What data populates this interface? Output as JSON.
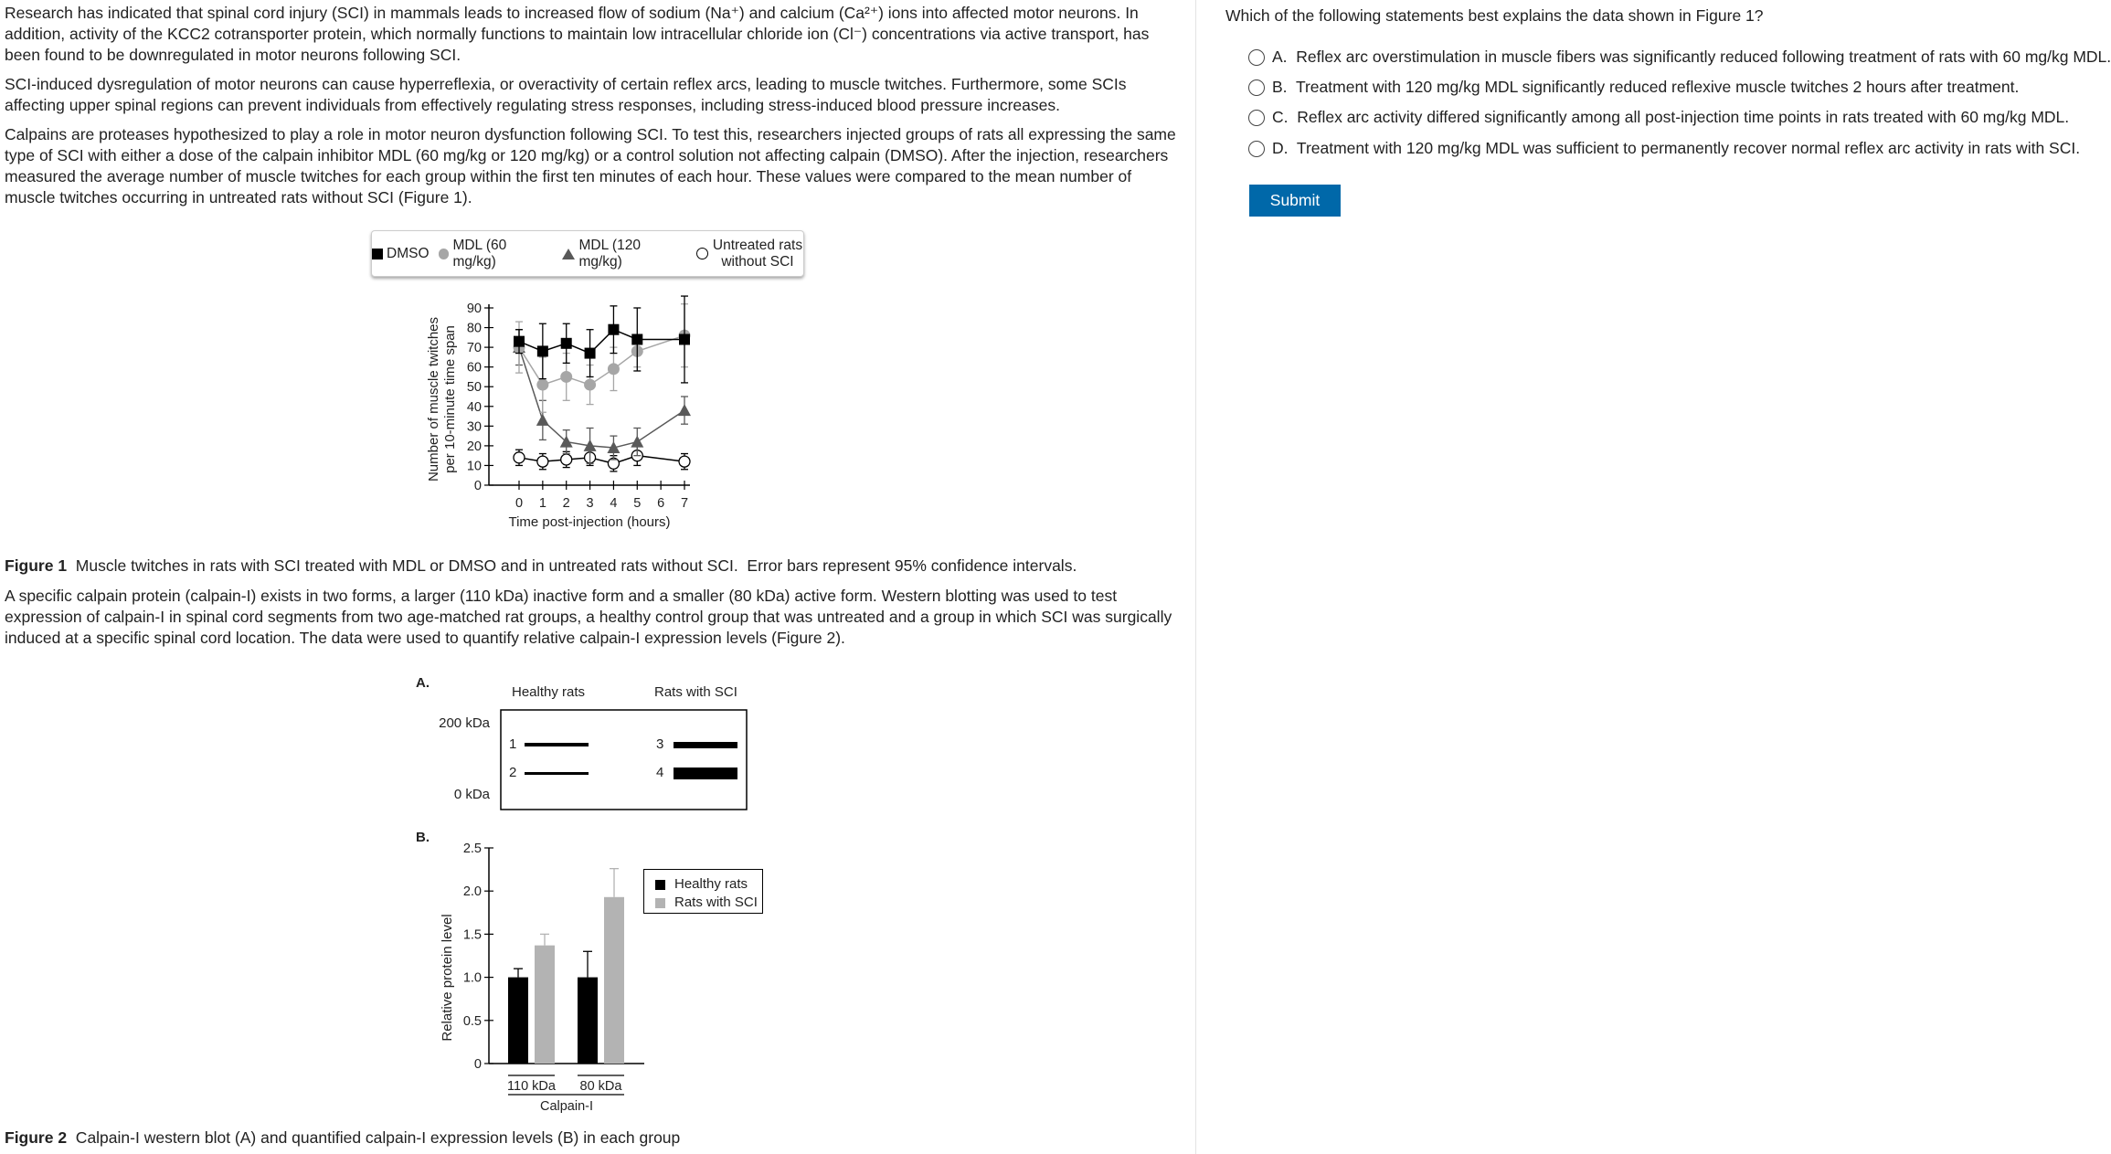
{
  "passage": {
    "p1": "Research has indicated that spinal cord injury (SCI) in mammals leads to increased flow of sodium (Na⁺) and calcium (Ca²⁺) ions into affected motor neurons.  In addition, activity of the KCC2 cotransporter protein, which normally functions to maintain low intracellular chloride ion (Cl⁻) concentrations via active transport, has been found to be downregulated in motor neurons following SCI.",
    "p2": "SCI-induced dysregulation of motor neurons can cause hyperreflexia, or overactivity of certain reflex arcs, leading to muscle twitches.  Furthermore, some SCIs affecting upper spinal regions can prevent individuals from effectively regulating stress responses, including stress-induced blood pressure increases.",
    "p3": "Calpains are proteases hypothesized to play a role in motor neuron dysfunction following SCI.  To test this, researchers injected groups of rats all expressing the same type of SCI with either a dose of the calpain inhibitor MDL (60 mg/kg or 120 mg/kg) or a control solution not affecting calpain (DMSO).  After the injection, researchers measured the average number of muscle twitches for each group within the first ten minutes of each hour.  These values were compared to the mean number of muscle twitches occurring in untreated rats without SCI (Figure 1).",
    "p4": "A specific calpain protein (calpain-I) exists in two forms, a larger (110 kDa) inactive form and a smaller (80 kDa) active form.  Western blotting was used to test expression of calpain-I in spinal cord segments from two age-matched rat groups, a healthy control group that was untreated and a group in which SCI was surgically induced at a specific spinal cord location.  The data were used to quantify relative calpain-I expression levels (Figure 2)."
  },
  "figure1_caption": {
    "label": "Figure 1",
    "text": "  Muscle twitches in rats with SCI treated with MDL or DMSO and in untreated rats without SCI.  Error bars represent 95% confidence intervals."
  },
  "figure2_caption": {
    "label": "Figure 2",
    "text": "  Calpain-I western blot (A) and quantified calpain-I expression levels (B) in each group"
  },
  "figure2a": {
    "panel_label": "A.",
    "group_labels": [
      "Healthy rats",
      "Rats with SCI"
    ],
    "marker_top": "200 kDa",
    "marker_bottom": "0 kDa",
    "lanes": [
      "1",
      "2",
      "3",
      "4"
    ]
  },
  "chart_data": [
    {
      "type": "line",
      "xlabel": "Time post-injection (hours)",
      "ylabel": [
        "Number of muscle twitches",
        "per 10-minute time span"
      ],
      "x_ticks": [
        0,
        1,
        2,
        3,
        4,
        5,
        6,
        7
      ],
      "y_ticks": [
        0,
        10,
        20,
        30,
        40,
        50,
        60,
        70,
        80,
        90
      ],
      "xlim": [
        0,
        7
      ],
      "ylim": [
        0,
        90
      ],
      "legend_placement": "top",
      "series": [
        {
          "name": "DMSO",
          "marker": "square",
          "color": "#000000",
          "x": [
            0,
            1,
            2,
            3,
            4,
            5,
            7
          ],
          "y": [
            73,
            68,
            72,
            67,
            79,
            74,
            74
          ],
          "err": [
            6,
            14,
            10,
            12,
            12,
            16,
            22
          ]
        },
        {
          "name": "MDL (60 mg/kg)",
          "marker": "circle",
          "color": "#a6a6a6",
          "x": [
            0,
            1,
            2,
            3,
            4,
            5,
            7
          ],
          "y": [
            70,
            51,
            55,
            51,
            59,
            68,
            76
          ],
          "err": [
            13,
            14,
            12,
            10,
            11,
            8,
            16
          ]
        },
        {
          "name": "MDL (120 mg/kg)",
          "marker": "triangle",
          "color": "#595959",
          "x": [
            0,
            1,
            2,
            3,
            4,
            5,
            7
          ],
          "y": [
            70,
            33,
            22,
            20,
            19,
            22,
            38
          ],
          "err": [
            9,
            10,
            6,
            9,
            6,
            7,
            7
          ]
        },
        {
          "name": "Untreated rats without SCI",
          "marker": "open-circle",
          "color": "#000000",
          "x": [
            0,
            1,
            2,
            3,
            4,
            5,
            7
          ],
          "y": [
            14,
            12,
            13,
            14,
            11,
            15,
            12
          ],
          "err": [
            4,
            4,
            4,
            4,
            4,
            5,
            4
          ]
        }
      ]
    },
    {
      "type": "bar",
      "panel_label": "B.",
      "ylabel": "Relative protein level",
      "xlabel": "Calpain-I",
      "categories": [
        "110 kDa",
        "80 kDa"
      ],
      "y_ticks": [
        "0",
        "0.5",
        "1.0",
        "1.5",
        "2.0",
        "2.5"
      ],
      "ylim": [
        0,
        2.5
      ],
      "legend_placement": "right",
      "series": [
        {
          "name": "Healthy rats",
          "color": "#000000",
          "values": [
            1.0,
            1.0
          ],
          "err": [
            0.1,
            0.3
          ]
        },
        {
          "name": "Rats with SCI",
          "color": "#b3b3b3",
          "values": [
            1.37,
            1.93
          ],
          "err": [
            0.13,
            0.33
          ]
        }
      ]
    }
  ],
  "question": {
    "prompt": "Which of the following statements best explains the data shown in Figure 1?",
    "options": [
      "A.  Reflex arc overstimulation in muscle fibers was significantly reduced following treatment of rats with 60 mg/kg MDL.",
      "B.  Treatment with 120 mg/kg MDL significantly reduced reflexive muscle twitches 2 hours after treatment.",
      "C.  Reflex arc activity differed significantly among all post-injection time points in rats treated with 60 mg/kg MDL.",
      "D.  Treatment with 120 mg/kg MDL was sufficient to permanently recover normal reflex arc activity in rats with SCI."
    ],
    "submit_label": "Submit",
    "accent_color": "#0068a9"
  }
}
